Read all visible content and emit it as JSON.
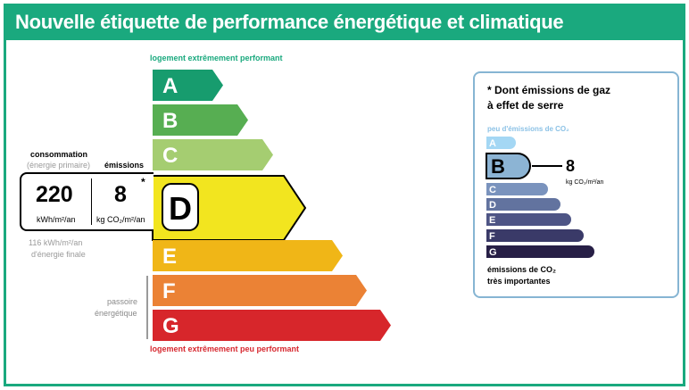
{
  "header": {
    "title": "Nouvelle étiquette de performance énergétique et climatique"
  },
  "energy_scale": {
    "top_caption": "logement extrêmement performant",
    "bottom_caption": "logement extrêmement peu performant",
    "classes": [
      {
        "letter": "A",
        "color": "#179c6e"
      },
      {
        "letter": "B",
        "color": "#57ae52"
      },
      {
        "letter": "C",
        "color": "#a5cd71"
      },
      {
        "letter": "D",
        "color": "#f2e51f"
      },
      {
        "letter": "E",
        "color": "#f0b617"
      },
      {
        "letter": "F",
        "color": "#eb8235"
      },
      {
        "letter": "G",
        "color": "#d7262b"
      }
    ],
    "selected": "D"
  },
  "consumption": {
    "label": "consommation",
    "sublabel": "(énergie primaire)",
    "value": "220",
    "unit": "kWh/m²/an",
    "final_value": "116 kWh/m²/an",
    "final_label": "d'énergie finale"
  },
  "emissions": {
    "label": "émissions",
    "value": "8",
    "unit": "kg CO₂/m²/an",
    "asterisk": "*"
  },
  "passoire": {
    "line1": "passoire",
    "line2": "énergétique"
  },
  "ges_panel": {
    "title_line1": "* Dont émissions de gaz",
    "title_line2": "à effet de serre",
    "top_caption": "peu d'émissions de CO₂",
    "bottom_caption_line1": "émissions de CO₂",
    "bottom_caption_line2": "très importantes",
    "classes": [
      {
        "letter": "A",
        "color": "#a4d7f4"
      },
      {
        "letter": "B",
        "color": "#8cb4d4"
      },
      {
        "letter": "C",
        "color": "#7a93bd"
      },
      {
        "letter": "D",
        "color": "#62739f"
      },
      {
        "letter": "E",
        "color": "#4e5585"
      },
      {
        "letter": "F",
        "color": "#3a3a68"
      },
      {
        "letter": "G",
        "color": "#271f46"
      }
    ],
    "selected": "B",
    "selected_value": "8",
    "selected_unit": "kg CO₂/m²/an"
  }
}
